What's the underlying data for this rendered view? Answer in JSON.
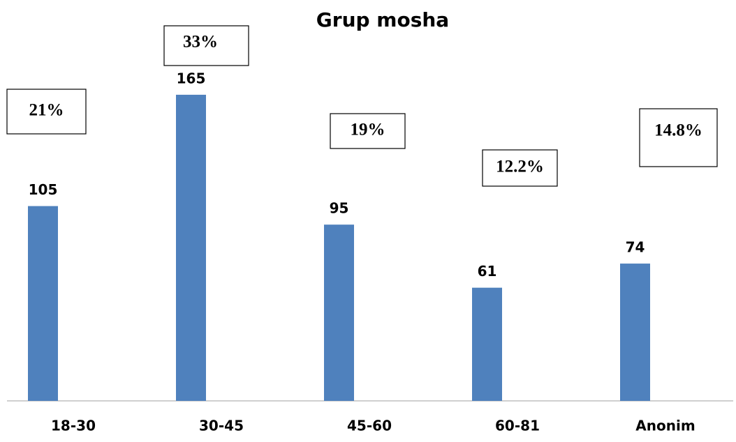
{
  "chart_data": {
    "type": "bar",
    "title": "Grup mosha",
    "categories": [
      "18-30",
      "30-45",
      "45-60",
      "60-81",
      "Anonim"
    ],
    "values": [
      105,
      165,
      95,
      61,
      74
    ],
    "color": "#4f81bd",
    "ylim": [
      0,
      180
    ],
    "annotations": [
      "21%",
      "33%",
      "19%",
      "12.2%",
      "14.8%"
    ]
  }
}
